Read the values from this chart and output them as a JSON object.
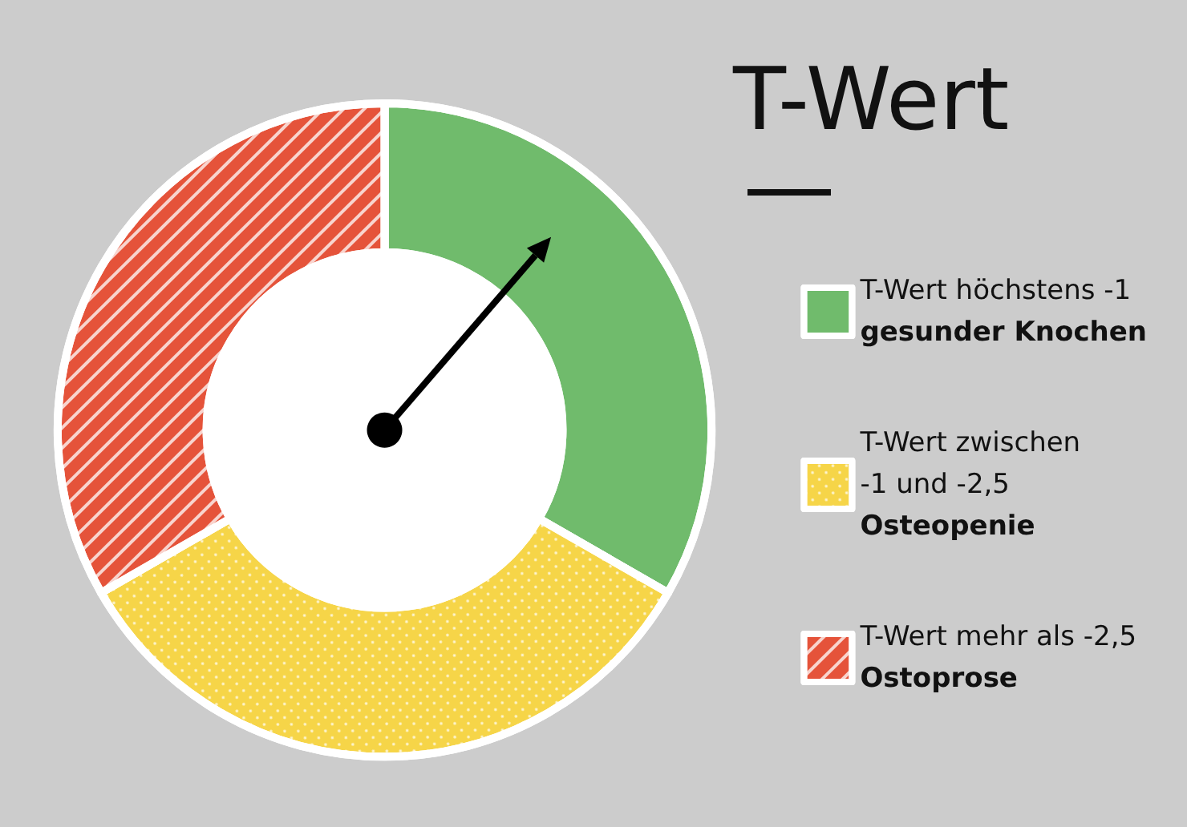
{
  "chart_data": {
    "type": "donut",
    "title": "T-Wert",
    "categories": [
      "T-Wert höchstens -1\ngesunder Knochen",
      "T-Wert zwischen\n-1 und -2,5\nOsteopenie",
      "T-Wert mehr als -2,5\nOstoprose"
    ],
    "values": [
      33.3,
      33.4,
      33.3
    ],
    "colors": [
      "#70bb6c",
      "#f6d548",
      "#e5533a"
    ],
    "needle": "T-Wert höchstens -1\ngesunder Knochen",
    "legend": "right"
  }
}
